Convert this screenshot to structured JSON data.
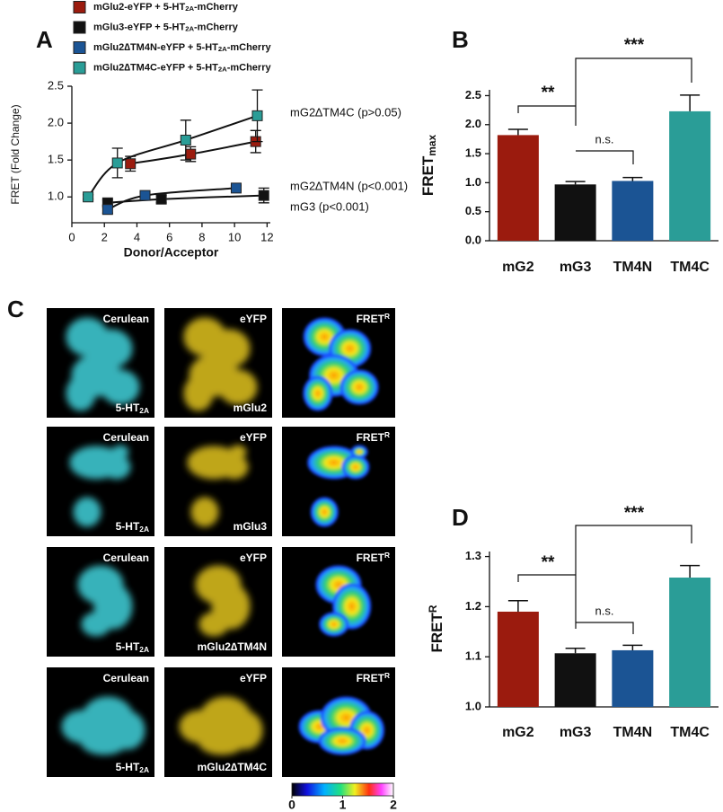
{
  "panel_labels": {
    "a": "A",
    "b": "B",
    "c": "C",
    "d": "D"
  },
  "chart_data": [
    {
      "type": "scatter",
      "xlabel": "Donor/Acceptor",
      "ylabel": "FRET (Fold Change)",
      "xlim": [
        0,
        12.2
      ],
      "ylim": [
        0.65,
        2.5
      ],
      "xticks": [
        0,
        2,
        4,
        6,
        8,
        10,
        12
      ],
      "yticks": [
        {
          "value": 1,
          "label": "1.0"
        },
        1.5,
        {
          "value": 2,
          "label": "2.0"
        },
        2.5
      ],
      "series": [
        {
          "name": [
            {
              "text": "mGlu2-eYFP + 5-HT"
            },
            {
              "sub": "2A"
            },
            {
              "text": "-mCherry"
            }
          ],
          "color": "#9b1b0e",
          "x": [
            3.6,
            7.3,
            11.3
          ],
          "values": [
            1.45,
            1.58,
            1.75
          ],
          "errors": [
            0.1,
            0.1,
            0.15
          ]
        },
        {
          "name": [
            {
              "text": "mGlu3-eYFP + 5-HT"
            },
            {
              "sub": "2A"
            },
            {
              "text": "-mCherry"
            }
          ],
          "color": "#111111",
          "x": [
            2.2,
            5.5,
            11.8
          ],
          "values": [
            0.92,
            0.97,
            1.02
          ],
          "errors": [
            0.04,
            0.05,
            0.1
          ]
        },
        {
          "name": [
            {
              "text": "mGlu2∆TM4N-eYFP + 5-HT"
            },
            {
              "sub": "2A"
            },
            {
              "text": "-mCherry"
            }
          ],
          "color": "#1b5494",
          "x": [
            2.2,
            4.5,
            10.1
          ],
          "values": [
            0.83,
            1.02,
            1.12
          ],
          "errors": [
            0.05,
            0.03,
            0.03
          ]
        },
        {
          "name": [
            {
              "text": "mGlu2∆TM4C-eYFP + 5-HT"
            },
            {
              "sub": "2A"
            },
            {
              "text": "-mCherry"
            }
          ],
          "color": "#2a9d97",
          "x": [
            1.0,
            2.8,
            7.0,
            11.4
          ],
          "values": [
            1.0,
            1.46,
            1.77,
            2.1
          ],
          "errors": [
            0.03,
            0.2,
            0.27,
            0.35
          ]
        }
      ],
      "annotations": [
        "mG2∆TM4C (p>0.05)",
        "mG2∆TM4N (p<0.001)",
        "mG3 (p<0.001)"
      ]
    },
    {
      "type": "bar",
      "ylabel": [
        {
          "text": "FRET"
        },
        {
          "sub": "max"
        }
      ],
      "categories": [
        "mG2",
        "mG3",
        "TM4N",
        "TM4C"
      ],
      "values": [
        1.82,
        0.97,
        1.03,
        2.23
      ],
      "errors": [
        0.1,
        0.05,
        0.06,
        0.28
      ],
      "colors": [
        "#9b1b0e",
        "#111111",
        "#1b5494",
        "#2a9d97"
      ],
      "ylim": [
        0,
        2.6
      ],
      "yticks": [
        {
          "value": 0,
          "label": "0.0"
        },
        0.5,
        {
          "value": 1,
          "label": "1.0"
        },
        1.5,
        {
          "value": 2,
          "label": "2.0"
        },
        2.5
      ],
      "annotations": [
        "**",
        "***",
        "n.s."
      ]
    },
    {
      "type": "bar",
      "ylabel": [
        {
          "text": "FRET"
        },
        {
          "sup": "R"
        }
      ],
      "categories": [
        "mG2",
        "mG3",
        "TM4N",
        "TM4C"
      ],
      "values": [
        1.19,
        1.107,
        1.113,
        1.258
      ],
      "errors": [
        0.022,
        0.01,
        0.01,
        0.024
      ],
      "colors": [
        "#9b1b0e",
        "#111111",
        "#1b5494",
        "#2a9d97"
      ],
      "ylim": [
        1.0,
        1.31
      ],
      "yticks": [
        {
          "value": 1,
          "label": "1.0"
        },
        1.1,
        1.2,
        1.3
      ],
      "annotations": [
        "**",
        "***",
        "n.s."
      ]
    }
  ],
  "images": {
    "rows": [
      {
        "cells": [
          {
            "top": [
              {
                "text": "Cerulean"
              }
            ],
            "bottom": [
              {
                "text": "5-HT"
              },
              {
                "sub": "2A"
              }
            ]
          },
          {
            "top": [
              {
                "text": "eYFP"
              }
            ],
            "bottom": [
              {
                "text": "mGlu2"
              }
            ]
          },
          {
            "top": [
              {
                "text": "FRET"
              },
              {
                "sup": "R"
              }
            ]
          }
        ]
      },
      {
        "cells": [
          {
            "top": [
              {
                "text": "Cerulean"
              }
            ],
            "bottom": [
              {
                "text": "5-HT"
              },
              {
                "sub": "2A"
              }
            ]
          },
          {
            "top": [
              {
                "text": "eYFP"
              }
            ],
            "bottom": [
              {
                "text": "mGlu3"
              }
            ]
          },
          {
            "top": [
              {
                "text": "FRET"
              },
              {
                "sup": "R"
              }
            ]
          }
        ]
      },
      {
        "cells": [
          {
            "top": [
              {
                "text": "Cerulean"
              }
            ],
            "bottom": [
              {
                "text": "5-HT"
              },
              {
                "sub": "2A"
              }
            ]
          },
          {
            "top": [
              {
                "text": "eYFP"
              }
            ],
            "bottom": [
              {
                "text": "mGlu2∆TM4N"
              }
            ]
          },
          {
            "top": [
              {
                "text": "FRET"
              },
              {
                "sup": "R"
              }
            ]
          }
        ]
      },
      {
        "cells": [
          {
            "top": [
              {
                "text": "Cerulean"
              }
            ],
            "bottom": [
              {
                "text": "5-HT"
              },
              {
                "sub": "2A"
              }
            ]
          },
          {
            "top": [
              {
                "text": "eYFP"
              }
            ],
            "bottom": [
              {
                "text": "mGlu2∆TM4C"
              }
            ]
          },
          {
            "top": [
              {
                "text": "FRET"
              },
              {
                "sup": "R"
              }
            ]
          }
        ]
      }
    ],
    "colorbar": {
      "lim": [
        0,
        2
      ],
      "ticks": [
        0,
        1,
        2
      ]
    }
  }
}
